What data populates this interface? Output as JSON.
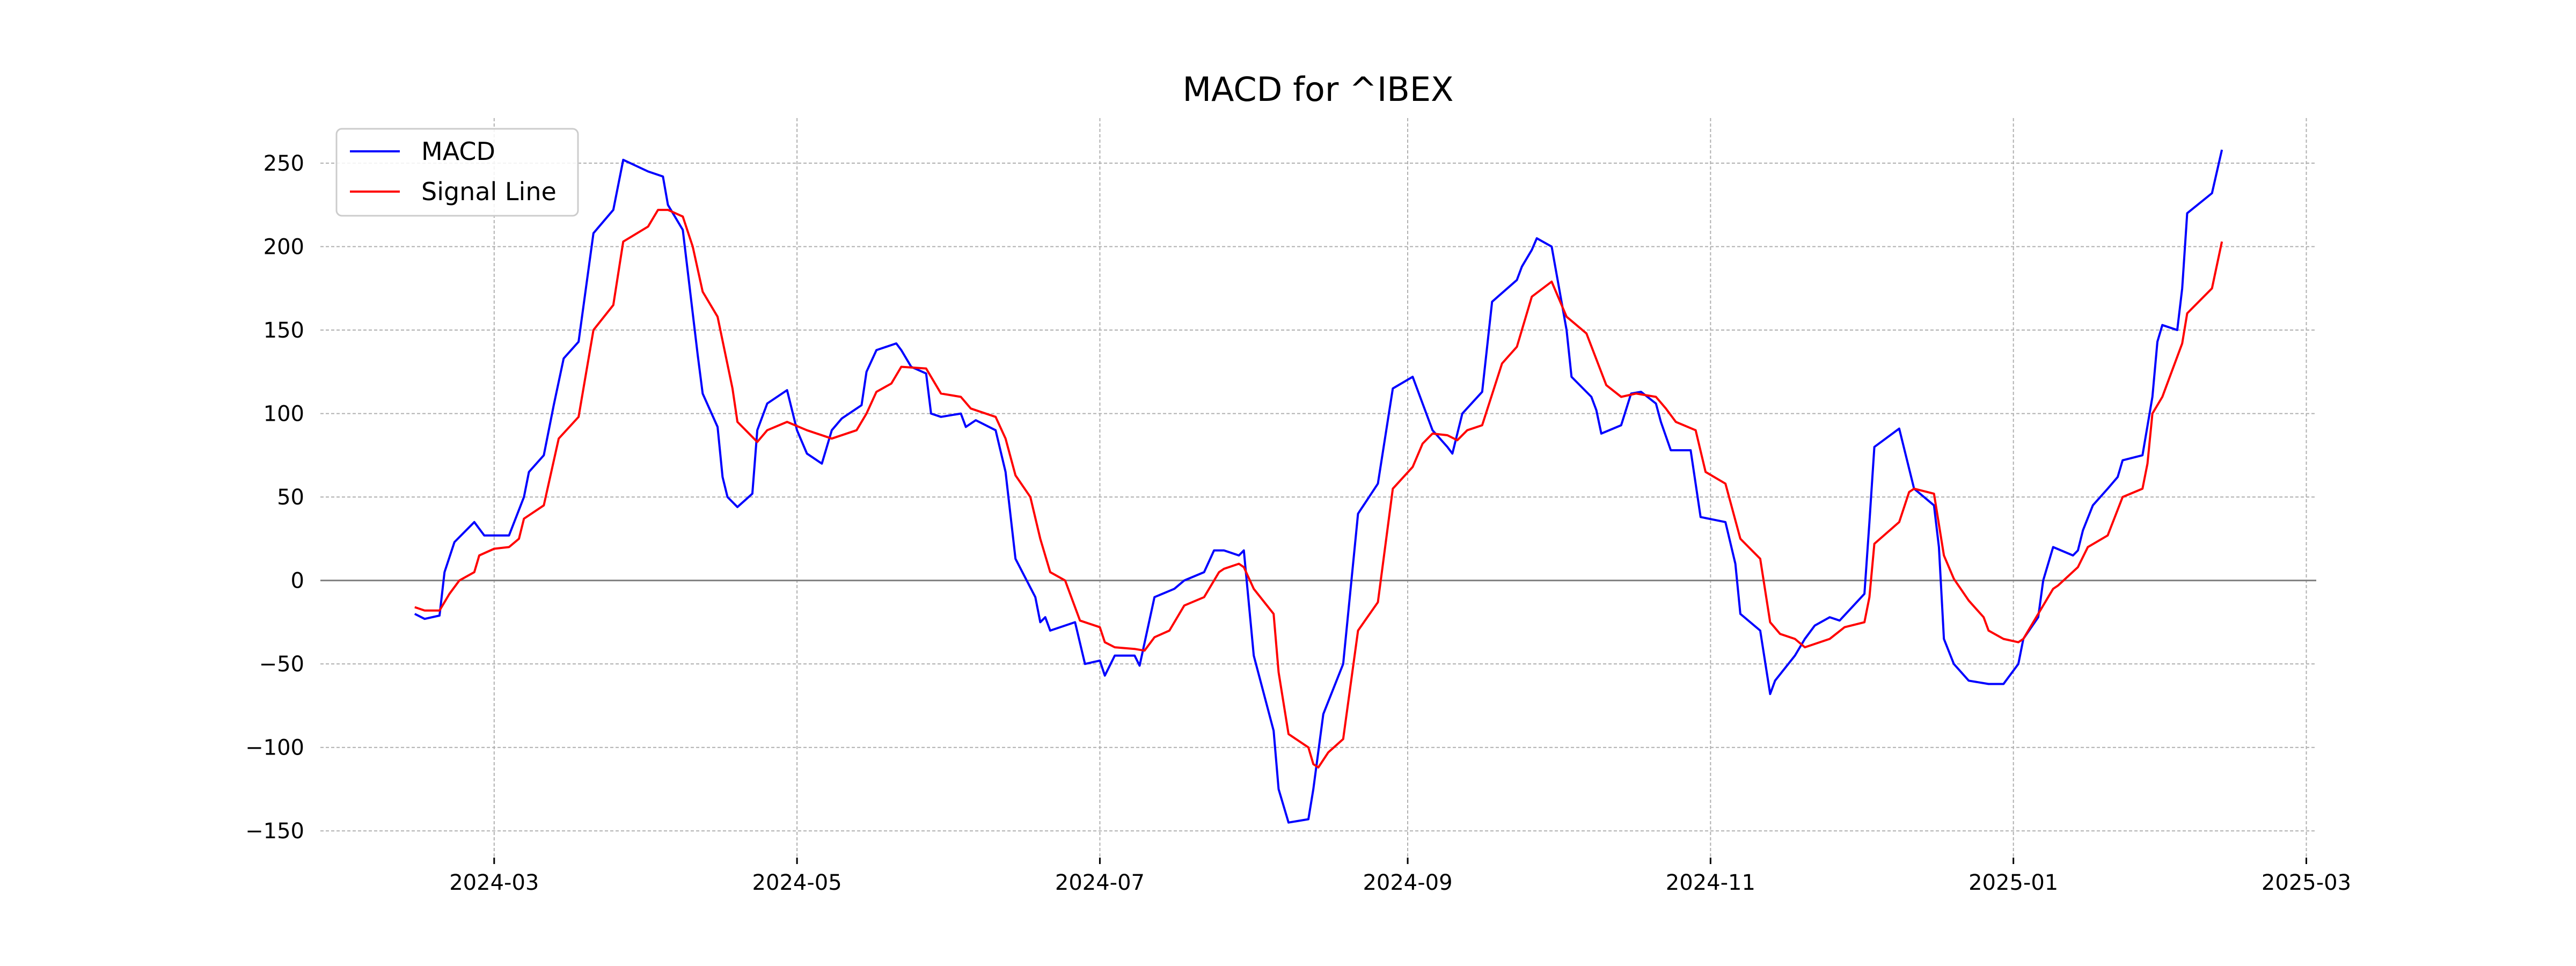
{
  "chart_data": {
    "type": "line",
    "title": "MACD for ^IBEX",
    "xlabel": "",
    "ylabel": "",
    "xlim": [
      "2024-01-26",
      "2025-03-03"
    ],
    "ylim": [
      -166,
      277
    ],
    "grid": true,
    "legend_position": "top-left",
    "x_ticks": [
      "2024-03",
      "2024-05",
      "2024-07",
      "2024-09",
      "2024-11",
      "2025-01",
      "2025-03"
    ],
    "y_ticks": [
      -150,
      -100,
      -50,
      0,
      50,
      100,
      150,
      200,
      250
    ],
    "y_tick_labels": [
      "−150",
      "−100",
      "−50",
      "0",
      "50",
      "100",
      "150",
      "200",
      "250"
    ],
    "zero_line": true,
    "series": [
      {
        "name": "MACD",
        "color": "#0000ff",
        "points": [
          [
            "2024-02-14",
            -20
          ],
          [
            "2024-02-16",
            -23
          ],
          [
            "2024-02-19",
            -21
          ],
          [
            "2024-02-20",
            5
          ],
          [
            "2024-02-22",
            23
          ],
          [
            "2024-02-26",
            35
          ],
          [
            "2024-02-28",
            27
          ],
          [
            "2024-03-04",
            27
          ],
          [
            "2024-03-07",
            50
          ],
          [
            "2024-03-08",
            65
          ],
          [
            "2024-03-11",
            75
          ],
          [
            "2024-03-13",
            105
          ],
          [
            "2024-03-15",
            133
          ],
          [
            "2024-03-18",
            143
          ],
          [
            "2024-03-21",
            208
          ],
          [
            "2024-03-25",
            222
          ],
          [
            "2024-03-27",
            252
          ],
          [
            "2024-04-01",
            245
          ],
          [
            "2024-04-04",
            242
          ],
          [
            "2024-04-05",
            225
          ],
          [
            "2024-04-08",
            210
          ],
          [
            "2024-04-11",
            135
          ],
          [
            "2024-04-12",
            112
          ],
          [
            "2024-04-15",
            92
          ],
          [
            "2024-04-16",
            62
          ],
          [
            "2024-04-17",
            50
          ],
          [
            "2024-04-19",
            44
          ],
          [
            "2024-04-22",
            52
          ],
          [
            "2024-04-23",
            90
          ],
          [
            "2024-04-25",
            106
          ],
          [
            "2024-04-29",
            114
          ],
          [
            "2024-05-01",
            90
          ],
          [
            "2024-05-03",
            76
          ],
          [
            "2024-05-06",
            70
          ],
          [
            "2024-05-08",
            90
          ],
          [
            "2024-05-10",
            97
          ],
          [
            "2024-05-14",
            105
          ],
          [
            "2024-05-15",
            125
          ],
          [
            "2024-05-17",
            138
          ],
          [
            "2024-05-21",
            142
          ],
          [
            "2024-05-22",
            138
          ],
          [
            "2024-05-24",
            128
          ],
          [
            "2024-05-27",
            124
          ],
          [
            "2024-05-28",
            100
          ],
          [
            "2024-05-30",
            98
          ],
          [
            "2024-06-03",
            100
          ],
          [
            "2024-06-04",
            92
          ],
          [
            "2024-06-06",
            96
          ],
          [
            "2024-06-10",
            90
          ],
          [
            "2024-06-12",
            65
          ],
          [
            "2024-06-14",
            13
          ],
          [
            "2024-06-18",
            -10
          ],
          [
            "2024-06-19",
            -25
          ],
          [
            "2024-06-20",
            -22
          ],
          [
            "2024-06-21",
            -30
          ],
          [
            "2024-06-26",
            -25
          ],
          [
            "2024-06-28",
            -50
          ],
          [
            "2024-07-01",
            -48
          ],
          [
            "2024-07-02",
            -57
          ],
          [
            "2024-07-04",
            -45
          ],
          [
            "2024-07-08",
            -45
          ],
          [
            "2024-07-09",
            -51
          ],
          [
            "2024-07-12",
            -10
          ],
          [
            "2024-07-16",
            -5
          ],
          [
            "2024-07-18",
            0
          ],
          [
            "2024-07-22",
            5
          ],
          [
            "2024-07-24",
            18
          ],
          [
            "2024-07-26",
            18
          ],
          [
            "2024-07-29",
            15
          ],
          [
            "2024-07-30",
            18
          ],
          [
            "2024-08-01",
            -45
          ],
          [
            "2024-08-05",
            -90
          ],
          [
            "2024-08-06",
            -125
          ],
          [
            "2024-08-08",
            -145
          ],
          [
            "2024-08-12",
            -143
          ],
          [
            "2024-08-13",
            -125
          ],
          [
            "2024-08-15",
            -80
          ],
          [
            "2024-08-19",
            -50
          ],
          [
            "2024-08-22",
            40
          ],
          [
            "2024-08-26",
            58
          ],
          [
            "2024-08-29",
            115
          ],
          [
            "2024-09-02",
            122
          ],
          [
            "2024-09-04",
            106
          ],
          [
            "2024-09-06",
            90
          ],
          [
            "2024-09-09",
            80
          ],
          [
            "2024-09-10",
            76
          ],
          [
            "2024-09-12",
            100
          ],
          [
            "2024-09-16",
            113
          ],
          [
            "2024-09-18",
            167
          ],
          [
            "2024-09-23",
            180
          ],
          [
            "2024-09-24",
            188
          ],
          [
            "2024-09-26",
            198
          ],
          [
            "2024-09-27",
            205
          ],
          [
            "2024-09-30",
            200
          ],
          [
            "2024-10-03",
            150
          ],
          [
            "2024-10-04",
            122
          ],
          [
            "2024-10-08",
            110
          ],
          [
            "2024-10-09",
            102
          ],
          [
            "2024-10-10",
            88
          ],
          [
            "2024-10-14",
            93
          ],
          [
            "2024-10-16",
            112
          ],
          [
            "2024-10-18",
            113
          ],
          [
            "2024-10-21",
            106
          ],
          [
            "2024-10-22",
            95
          ],
          [
            "2024-10-24",
            78
          ],
          [
            "2024-10-28",
            78
          ],
          [
            "2024-10-30",
            38
          ],
          [
            "2024-11-04",
            35
          ],
          [
            "2024-11-06",
            10
          ],
          [
            "2024-11-07",
            -20
          ],
          [
            "2024-11-11",
            -30
          ],
          [
            "2024-11-13",
            -68
          ],
          [
            "2024-11-14",
            -60
          ],
          [
            "2024-11-18",
            -45
          ],
          [
            "2024-11-20",
            -35
          ],
          [
            "2024-11-22",
            -27
          ],
          [
            "2024-11-25",
            -22
          ],
          [
            "2024-11-27",
            -24
          ],
          [
            "2024-12-02",
            -8
          ],
          [
            "2024-12-03",
            35
          ],
          [
            "2024-12-04",
            80
          ],
          [
            "2024-12-09",
            91
          ],
          [
            "2024-12-12",
            55
          ],
          [
            "2024-12-16",
            45
          ],
          [
            "2024-12-17",
            20
          ],
          [
            "2024-12-18",
            -35
          ],
          [
            "2024-12-20",
            -50
          ],
          [
            "2024-12-23",
            -60
          ],
          [
            "2024-12-27",
            -62
          ],
          [
            "2024-12-30",
            -62
          ],
          [
            "2025-01-02",
            -50
          ],
          [
            "2025-01-03",
            -35
          ],
          [
            "2025-01-06",
            -22
          ],
          [
            "2025-01-07",
            0
          ],
          [
            "2025-01-09",
            20
          ],
          [
            "2025-01-13",
            15
          ],
          [
            "2025-01-14",
            18
          ],
          [
            "2025-01-15",
            30
          ],
          [
            "2025-01-17",
            45
          ],
          [
            "2025-01-20",
            55
          ],
          [
            "2025-01-22",
            62
          ],
          [
            "2025-01-23",
            72
          ],
          [
            "2025-01-27",
            75
          ],
          [
            "2025-01-29",
            110
          ],
          [
            "2025-01-30",
            143
          ],
          [
            "2025-01-31",
            153
          ],
          [
            "2025-02-03",
            150
          ],
          [
            "2025-02-04",
            175
          ],
          [
            "2025-02-05",
            220
          ],
          [
            "2025-02-10",
            232
          ],
          [
            "2025-02-12",
            258
          ]
        ]
      },
      {
        "name": "Signal Line",
        "color": "#ff0000",
        "points": [
          [
            "2024-02-14",
            -16
          ],
          [
            "2024-02-16",
            -18
          ],
          [
            "2024-02-19",
            -18
          ],
          [
            "2024-02-21",
            -8
          ],
          [
            "2024-02-23",
            0
          ],
          [
            "2024-02-26",
            5
          ],
          [
            "2024-02-27",
            15
          ],
          [
            "2024-03-01",
            19
          ],
          [
            "2024-03-04",
            20
          ],
          [
            "2024-03-06",
            25
          ],
          [
            "2024-03-07",
            37
          ],
          [
            "2024-03-11",
            45
          ],
          [
            "2024-03-14",
            85
          ],
          [
            "2024-03-18",
            98
          ],
          [
            "2024-03-21",
            150
          ],
          [
            "2024-03-25",
            165
          ],
          [
            "2024-03-27",
            203
          ],
          [
            "2024-04-01",
            212
          ],
          [
            "2024-04-03",
            222
          ],
          [
            "2024-04-05",
            222
          ],
          [
            "2024-04-08",
            218
          ],
          [
            "2024-04-10",
            200
          ],
          [
            "2024-04-12",
            173
          ],
          [
            "2024-04-15",
            158
          ],
          [
            "2024-04-18",
            115
          ],
          [
            "2024-04-19",
            95
          ],
          [
            "2024-04-23",
            83
          ],
          [
            "2024-04-25",
            90
          ],
          [
            "2024-04-29",
            95
          ],
          [
            "2024-05-03",
            90
          ],
          [
            "2024-05-08",
            85
          ],
          [
            "2024-05-13",
            90
          ],
          [
            "2024-05-15",
            100
          ],
          [
            "2024-05-17",
            113
          ],
          [
            "2024-05-20",
            118
          ],
          [
            "2024-05-22",
            128
          ],
          [
            "2024-05-27",
            127
          ],
          [
            "2024-05-30",
            112
          ],
          [
            "2024-06-03",
            110
          ],
          [
            "2024-06-05",
            103
          ],
          [
            "2024-06-10",
            98
          ],
          [
            "2024-06-12",
            85
          ],
          [
            "2024-06-14",
            63
          ],
          [
            "2024-06-17",
            50
          ],
          [
            "2024-06-19",
            25
          ],
          [
            "2024-06-21",
            5
          ],
          [
            "2024-06-24",
            0
          ],
          [
            "2024-06-27",
            -24
          ],
          [
            "2024-07-01",
            -28
          ],
          [
            "2024-07-02",
            -37
          ],
          [
            "2024-07-04",
            -40
          ],
          [
            "2024-07-08",
            -41
          ],
          [
            "2024-07-10",
            -42
          ],
          [
            "2024-07-12",
            -34
          ],
          [
            "2024-07-15",
            -30
          ],
          [
            "2024-07-18",
            -15
          ],
          [
            "2024-07-22",
            -10
          ],
          [
            "2024-07-25",
            5
          ],
          [
            "2024-07-26",
            7
          ],
          [
            "2024-07-29",
            10
          ],
          [
            "2024-07-30",
            8
          ],
          [
            "2024-08-01",
            -5
          ],
          [
            "2024-08-05",
            -20
          ],
          [
            "2024-08-06",
            -55
          ],
          [
            "2024-08-08",
            -92
          ],
          [
            "2024-08-12",
            -100
          ],
          [
            "2024-08-13",
            -110
          ],
          [
            "2024-08-14",
            -112
          ],
          [
            "2024-08-16",
            -103
          ],
          [
            "2024-08-19",
            -95
          ],
          [
            "2024-08-22",
            -30
          ],
          [
            "2024-08-26",
            -13
          ],
          [
            "2024-08-29",
            55
          ],
          [
            "2024-09-02",
            68
          ],
          [
            "2024-09-04",
            82
          ],
          [
            "2024-09-06",
            88
          ],
          [
            "2024-09-09",
            87
          ],
          [
            "2024-09-11",
            84
          ],
          [
            "2024-09-13",
            90
          ],
          [
            "2024-09-16",
            93
          ],
          [
            "2024-09-20",
            130
          ],
          [
            "2024-09-23",
            140
          ],
          [
            "2024-09-26",
            170
          ],
          [
            "2024-09-30",
            179
          ],
          [
            "2024-10-03",
            158
          ],
          [
            "2024-10-07",
            148
          ],
          [
            "2024-10-11",
            117
          ],
          [
            "2024-10-14",
            110
          ],
          [
            "2024-10-17",
            112
          ],
          [
            "2024-10-21",
            110
          ],
          [
            "2024-10-23",
            103
          ],
          [
            "2024-10-25",
            95
          ],
          [
            "2024-10-29",
            90
          ],
          [
            "2024-10-31",
            65
          ],
          [
            "2024-11-04",
            58
          ],
          [
            "2024-11-07",
            25
          ],
          [
            "2024-11-11",
            13
          ],
          [
            "2024-11-13",
            -25
          ],
          [
            "2024-11-15",
            -32
          ],
          [
            "2024-11-18",
            -35
          ],
          [
            "2024-11-20",
            -40
          ],
          [
            "2024-11-25",
            -35
          ],
          [
            "2024-11-28",
            -28
          ],
          [
            "2024-12-02",
            -25
          ],
          [
            "2024-12-03",
            -10
          ],
          [
            "2024-12-04",
            22
          ],
          [
            "2024-12-09",
            35
          ],
          [
            "2024-12-11",
            53
          ],
          [
            "2024-12-12",
            55
          ],
          [
            "2024-12-16",
            52
          ],
          [
            "2024-12-18",
            15
          ],
          [
            "2024-12-20",
            1
          ],
          [
            "2024-12-23",
            -12
          ],
          [
            "2024-12-26",
            -22
          ],
          [
            "2024-12-27",
            -30
          ],
          [
            "2024-12-30",
            -35
          ],
          [
            "2025-01-02",
            -37
          ],
          [
            "2025-01-03",
            -35
          ],
          [
            "2025-01-06",
            -20
          ],
          [
            "2025-01-09",
            -5
          ],
          [
            "2025-01-10",
            -3
          ],
          [
            "2025-01-14",
            8
          ],
          [
            "2025-01-16",
            20
          ],
          [
            "2025-01-20",
            27
          ],
          [
            "2025-01-23",
            50
          ],
          [
            "2025-01-27",
            55
          ],
          [
            "2025-01-28",
            70
          ],
          [
            "2025-01-29",
            100
          ],
          [
            "2025-01-31",
            110
          ],
          [
            "2025-02-04",
            142
          ],
          [
            "2025-02-05",
            160
          ],
          [
            "2025-02-10",
            175
          ],
          [
            "2025-02-12",
            203
          ]
        ]
      }
    ]
  }
}
